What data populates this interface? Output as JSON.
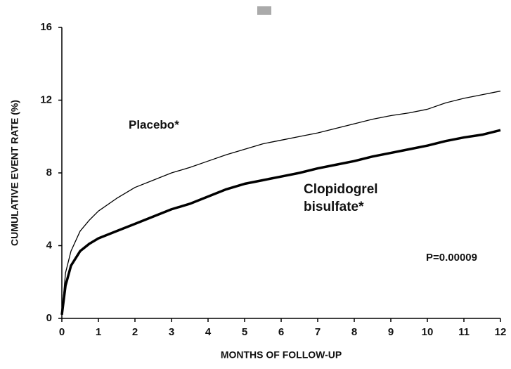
{
  "chart_data": {
    "type": "line",
    "x_label": "MONTHS OF FOLLOW-UP",
    "y_label": "CUMULATIVE EVENT RATE (%)",
    "x": [
      0,
      0.1,
      0.25,
      0.5,
      0.75,
      1,
      1.5,
      2,
      2.5,
      3,
      3.5,
      4,
      4.5,
      5,
      5.5,
      6,
      6.5,
      7,
      7.5,
      8,
      8.5,
      9,
      9.5,
      10,
      10.5,
      11,
      11.5,
      12
    ],
    "series": [
      {
        "name": "Placebo*",
        "color": "#000000",
        "values": [
          0.2,
          2.5,
          3.7,
          4.8,
          5.4,
          5.9,
          6.6,
          7.2,
          7.6,
          8.0,
          8.3,
          8.65,
          9.0,
          9.3,
          9.6,
          9.8,
          10.0,
          10.2,
          10.45,
          10.7,
          10.95,
          11.15,
          11.3,
          11.5,
          11.85,
          12.1,
          12.3,
          12.5
        ]
      },
      {
        "name": "Clopidogrel bisulfate*",
        "color": "#000000",
        "values": [
          0.2,
          1.8,
          2.9,
          3.7,
          4.1,
          4.4,
          4.8,
          5.2,
          5.6,
          6.0,
          6.3,
          6.7,
          7.1,
          7.4,
          7.6,
          7.8,
          8.0,
          8.25,
          8.45,
          8.65,
          8.9,
          9.1,
          9.3,
          9.5,
          9.75,
          9.95,
          10.1,
          10.35
        ]
      }
    ],
    "annotations": [
      "P=0.00009"
    ],
    "xlim": [
      0,
      12
    ],
    "xticks": [
      0,
      1,
      2,
      3,
      4,
      5,
      6,
      7,
      8,
      9,
      10,
      11,
      12
    ],
    "ylim": [
      0,
      16
    ],
    "yticks": [
      0,
      4,
      8,
      12,
      16
    ],
    "grid": false
  }
}
